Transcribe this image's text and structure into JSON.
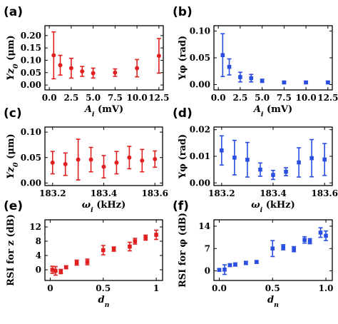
{
  "figure": {
    "colors": {
      "red": "#e02020",
      "blue": "#2a4fe0"
    }
  },
  "chart_data": [
    {
      "panel": "(a)",
      "type": "scatter",
      "color": "#e02020",
      "marker": "circle",
      "xlabel": "A_i (mV)",
      "ylabel": "Yz_0 (μm)",
      "xlim": [
        -0.5,
        13
      ],
      "ylim": [
        -0.02,
        0.24
      ],
      "xticks": [
        0,
        2.5,
        5,
        7.5,
        10,
        12.5
      ],
      "xtick_labels": [
        "0.0",
        "2.5",
        "5.0",
        "7.5",
        "10.0",
        "12.5"
      ],
      "yticks": [
        0,
        0.05,
        0.1,
        0.15,
        0.2
      ],
      "ytick_labels": [
        "0.00",
        "0.05",
        "0.10",
        "0.15",
        "0.20"
      ],
      "points": [
        {
          "x": 0.5,
          "y": 0.12,
          "err": 0.095
        },
        {
          "x": 1.25,
          "y": 0.08,
          "err": 0.04
        },
        {
          "x": 2.5,
          "y": 0.068,
          "err": 0.04
        },
        {
          "x": 3.75,
          "y": 0.055,
          "err": 0.02
        },
        {
          "x": 5,
          "y": 0.048,
          "err": 0.02
        },
        {
          "x": 7.5,
          "y": 0.05,
          "err": 0.015
        },
        {
          "x": 10,
          "y": 0.068,
          "err": 0.035
        },
        {
          "x": 12.5,
          "y": 0.118,
          "err": 0.07
        }
      ]
    },
    {
      "panel": "(b)",
      "type": "scatter",
      "color": "#2a4fe0",
      "marker": "square",
      "xlabel": "A_i (mV)",
      "ylabel": "Yφ (rad)",
      "xlim": [
        -0.5,
        13
      ],
      "ylim": [
        -0.01,
        0.11
      ],
      "xticks": [
        0,
        2.5,
        5,
        7.5,
        10,
        12.5
      ],
      "xtick_labels": [
        "0.0",
        "2.5",
        "5.0",
        "7.5",
        "10.0",
        "12.5"
      ],
      "yticks": [
        0,
        0.05,
        0.1
      ],
      "ytick_labels": [
        "0.00",
        "0.05",
        "0.10"
      ],
      "points": [
        {
          "x": 0.5,
          "y": 0.055,
          "err": 0.04
        },
        {
          "x": 1.25,
          "y": 0.033,
          "err": 0.015
        },
        {
          "x": 2.5,
          "y": 0.014,
          "err": 0.009
        },
        {
          "x": 3.75,
          "y": 0.012,
          "err": 0.007
        },
        {
          "x": 5,
          "y": 0.007,
          "err": 0.003
        },
        {
          "x": 7.5,
          "y": 0.004,
          "err": 0.002
        },
        {
          "x": 10,
          "y": 0.004,
          "err": 0.002
        },
        {
          "x": 12.5,
          "y": 0.004,
          "err": 0.002
        }
      ]
    },
    {
      "panel": "(c)",
      "type": "scatter",
      "color": "#e02020",
      "marker": "circle",
      "xlabel": "ω_i (kHz)",
      "ylabel": "Yz_0 (μm)",
      "xlim": [
        183.17,
        183.63
      ],
      "ylim": [
        -0.005,
        0.11
      ],
      "xticks": [
        183.2,
        183.4,
        183.6
      ],
      "xtick_labels": [
        "183.2",
        "183.4",
        "183.6"
      ],
      "yticks": [
        0,
        0.05,
        0.1
      ],
      "ytick_labels": [
        "0.00",
        "0.05",
        "0.10"
      ],
      "points": [
        {
          "x": 183.2,
          "y": 0.04,
          "err": 0.022
        },
        {
          "x": 183.25,
          "y": 0.037,
          "err": 0.022
        },
        {
          "x": 183.3,
          "y": 0.046,
          "err": 0.04
        },
        {
          "x": 183.35,
          "y": 0.046,
          "err": 0.024
        },
        {
          "x": 183.4,
          "y": 0.032,
          "err": 0.022
        },
        {
          "x": 183.45,
          "y": 0.04,
          "err": 0.022
        },
        {
          "x": 183.5,
          "y": 0.05,
          "err": 0.022
        },
        {
          "x": 183.55,
          "y": 0.044,
          "err": 0.022
        },
        {
          "x": 183.6,
          "y": 0.047,
          "err": 0.016
        }
      ]
    },
    {
      "panel": "(d)",
      "type": "scatter",
      "color": "#2a4fe0",
      "marker": "square",
      "xlabel": "ω_i (kHz)",
      "ylabel": "Yφ (rad)",
      "xlim": [
        183.17,
        183.63
      ],
      "ylim": [
        -0.001,
        0.021
      ],
      "xticks": [
        183.2,
        183.4,
        183.6
      ],
      "xtick_labels": [
        "183.2",
        "183.4",
        "183.6"
      ],
      "yticks": [
        0,
        0.01,
        0.02
      ],
      "ytick_labels": [
        "0.00",
        "0.01",
        "0.02"
      ],
      "points": [
        {
          "x": 183.2,
          "y": 0.0122,
          "err": 0.0055
        },
        {
          "x": 183.25,
          "y": 0.0095,
          "err": 0.0065
        },
        {
          "x": 183.3,
          "y": 0.0087,
          "err": 0.0065
        },
        {
          "x": 183.35,
          "y": 0.005,
          "err": 0.0025
        },
        {
          "x": 183.4,
          "y": 0.003,
          "err": 0.0017
        },
        {
          "x": 183.45,
          "y": 0.0042,
          "err": 0.0015
        },
        {
          "x": 183.5,
          "y": 0.0077,
          "err": 0.0055
        },
        {
          "x": 183.55,
          "y": 0.0093,
          "err": 0.007
        },
        {
          "x": 183.6,
          "y": 0.0088,
          "err": 0.006
        }
      ]
    },
    {
      "panel": "(e)",
      "type": "scatter",
      "color": "#e02020",
      "marker": "square",
      "xlabel": "d_n",
      "ylabel": "RSI for z (dB)",
      "xlim": [
        -0.05,
        1.06
      ],
      "ylim": [
        -3,
        14
      ],
      "xticks": [
        0,
        0.5,
        1
      ],
      "xtick_labels": [
        "0",
        "0.5",
        "1"
      ],
      "yticks": [
        0,
        4,
        8,
        12
      ],
      "ytick_labels": [
        "0",
        "4",
        "8",
        "12"
      ],
      "points": [
        {
          "x": 0.02,
          "y": 0,
          "err": 1.0
        },
        {
          "x": 0.05,
          "y": -0.3,
          "err": 1.2
        },
        {
          "x": 0.1,
          "y": -0.5,
          "err": 0.6
        },
        {
          "x": 0.15,
          "y": 0.7,
          "err": 0.4
        },
        {
          "x": 0.25,
          "y": 2.0,
          "err": 0.7
        },
        {
          "x": 0.35,
          "y": 2.2,
          "err": 0.8
        },
        {
          "x": 0.5,
          "y": 5.5,
          "err": 1.3
        },
        {
          "x": 0.6,
          "y": 5.8,
          "err": 0.6
        },
        {
          "x": 0.75,
          "y": 6.5,
          "err": 1.2
        },
        {
          "x": 0.8,
          "y": 8.0,
          "err": 0.8
        },
        {
          "x": 0.9,
          "y": 9.0,
          "err": 0.7
        },
        {
          "x": 1.0,
          "y": 9.8,
          "err": 1.3
        }
      ]
    },
    {
      "panel": "(f)",
      "type": "scatter",
      "color": "#2a4fe0",
      "marker": "square",
      "xlabel": "d_n",
      "ylabel": "RSI for φ (dB)",
      "xlim": [
        -0.05,
        1.06
      ],
      "ylim": [
        -3,
        16
      ],
      "xticks": [
        0,
        0.5,
        1
      ],
      "xtick_labels": [
        "0.0",
        "0.5",
        "1.0"
      ],
      "yticks": [
        0,
        7,
        14
      ],
      "ytick_labels": [
        "0",
        "7",
        "14"
      ],
      "points": [
        {
          "x": 0.0,
          "y": 0.3,
          "err": 0.4
        },
        {
          "x": 0.05,
          "y": 0.4,
          "err": 1.5
        },
        {
          "x": 0.1,
          "y": 1.8,
          "err": 0.4
        },
        {
          "x": 0.15,
          "y": 2.0,
          "err": 0.5
        },
        {
          "x": 0.25,
          "y": 2.5,
          "err": 0.5
        },
        {
          "x": 0.35,
          "y": 2.8,
          "err": 0.4
        },
        {
          "x": 0.5,
          "y": 7.0,
          "err": 2.5
        },
        {
          "x": 0.6,
          "y": 7.4,
          "err": 0.8
        },
        {
          "x": 0.7,
          "y": 6.8,
          "err": 0.8
        },
        {
          "x": 0.8,
          "y": 9.7,
          "err": 1.0
        },
        {
          "x": 0.85,
          "y": 9.3,
          "err": 0.8
        },
        {
          "x": 0.95,
          "y": 12.0,
          "err": 1.5
        },
        {
          "x": 1.0,
          "y": 11.0,
          "err": 1.5
        }
      ]
    }
  ]
}
